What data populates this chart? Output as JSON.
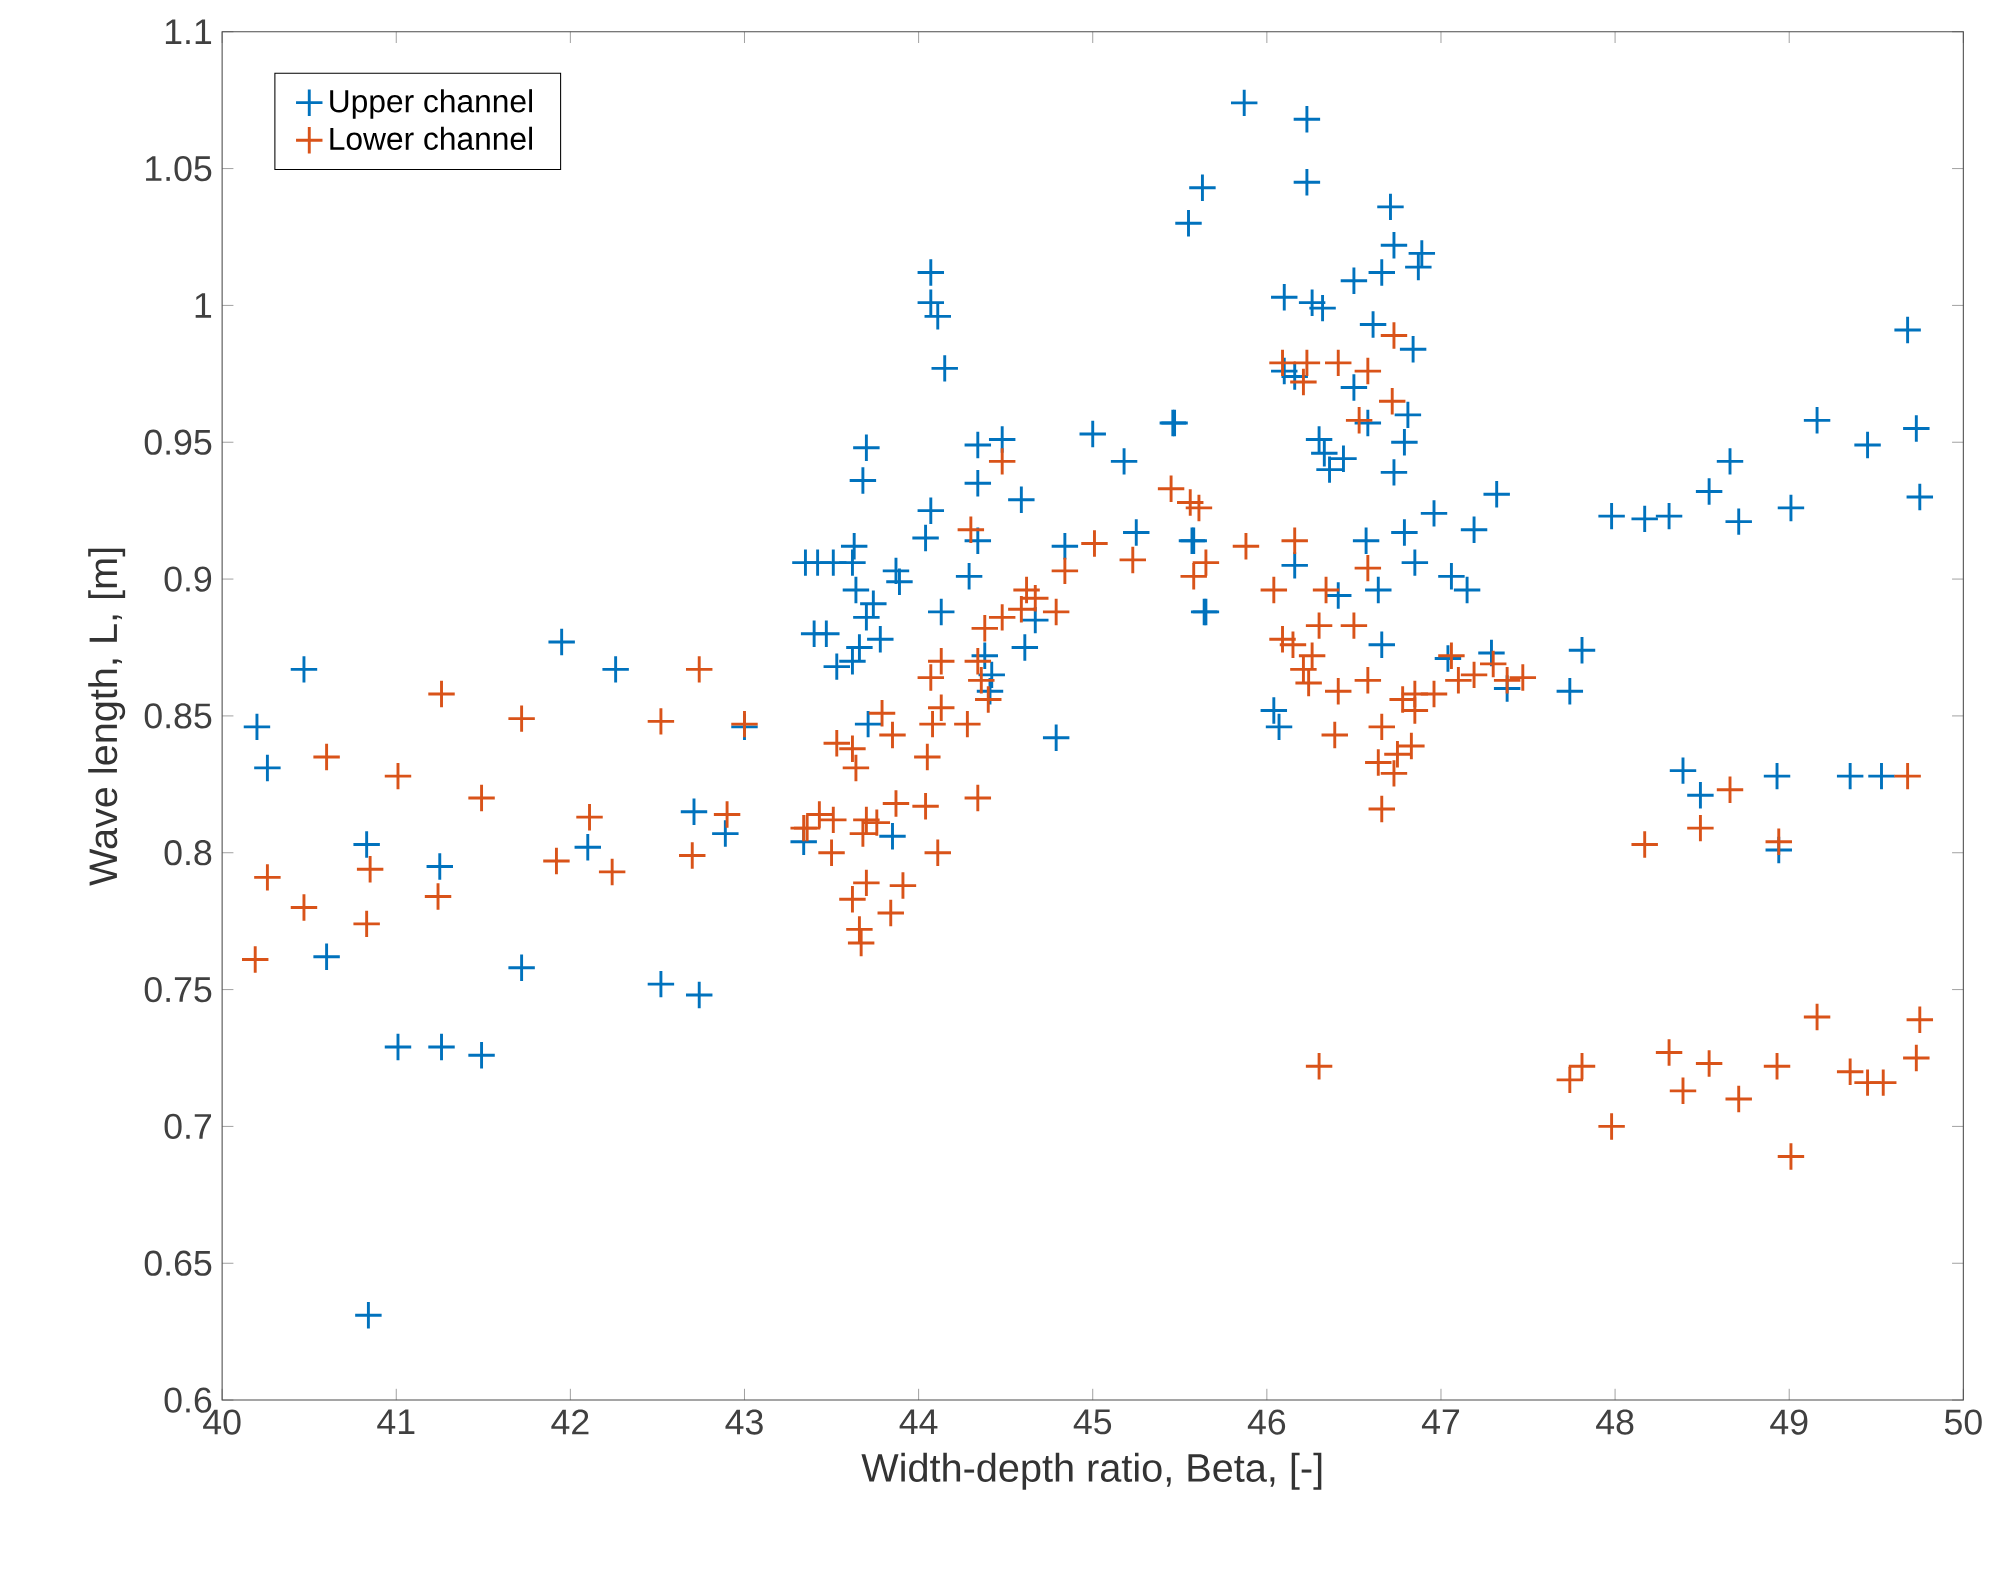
{
  "chart_data": {
    "type": "scatter",
    "xlabel": "Width-depth ratio, Beta, [-]",
    "ylabel": "Wave length, L, [m]",
    "xlim": [
      40,
      50
    ],
    "ylim": [
      0.6,
      1.1
    ],
    "xticks": [
      40,
      41,
      42,
      43,
      44,
      45,
      46,
      47,
      48,
      49,
      50
    ],
    "yticks": [
      0.6,
      0.65,
      0.7,
      0.75,
      0.8,
      0.85,
      0.9,
      0.95,
      1,
      1.05,
      1.1
    ],
    "legend": "top left",
    "marker": "cross",
    "series": [
      {
        "name": "Upper channel",
        "color": "#0072bd",
        "x": [
          40.2,
          40.26,
          40.47,
          40.6,
          40.83,
          40.84,
          41.01,
          41.26,
          41.49,
          41.25,
          41.72,
          41.95,
          42.1,
          42.26,
          42.52,
          42.74,
          42.71,
          42.89,
          43.0,
          43.35,
          43.4,
          43.34,
          44.07,
          44.07,
          44.11,
          44.15,
          43.7,
          43.68,
          44.34,
          44.48,
          44.34,
          44.59,
          45.0,
          45.18,
          45.46,
          44.07,
          44.04,
          44.34,
          44.29,
          44.84,
          45.25,
          45.57,
          45.65,
          43.42,
          43.51,
          43.63,
          43.62,
          43.87,
          43.89,
          43.64,
          43.74,
          43.7,
          43.47,
          43.78,
          43.66,
          43.53,
          43.62,
          44.13,
          44.67,
          44.61,
          44.38,
          44.42,
          44.41,
          43.71,
          44.79,
          43.85,
          45.87,
          46.23,
          45.63,
          46.23,
          45.55,
          46.71,
          46.73,
          46.89,
          46.66,
          46.87,
          46.5,
          46.1,
          46.26,
          46.32,
          46.61,
          46.84,
          46.1,
          46.16,
          46.5,
          46.81,
          46.58,
          46.79,
          46.3,
          46.33,
          46.44,
          46.36,
          46.73,
          45.47,
          47.32,
          46.96,
          47.19,
          46.79,
          46.57,
          45.58,
          46.16,
          46.85,
          47.06,
          47.15,
          46.64,
          46.41,
          45.64,
          46.66,
          47.04,
          47.29,
          47.38,
          46.04,
          46.07,
          49.68,
          49.16,
          49.45,
          49.73,
          49.75,
          48.66,
          48.54,
          47.98,
          48.17,
          48.31,
          48.71,
          49.01,
          47.81,
          47.74,
          48.39,
          48.49,
          48.93,
          49.35,
          49.53,
          48.94
        ],
        "values": [
          0.846,
          0.831,
          0.867,
          0.762,
          0.803,
          0.631,
          0.729,
          0.729,
          0.726,
          0.795,
          0.758,
          0.877,
          0.802,
          0.867,
          0.752,
          0.748,
          0.815,
          0.807,
          0.846,
          0.906,
          0.88,
          0.804,
          1.012,
          1.001,
          0.996,
          0.977,
          0.948,
          0.936,
          0.949,
          0.951,
          0.935,
          0.929,
          0.953,
          0.943,
          0.957,
          0.925,
          0.915,
          0.914,
          0.901,
          0.912,
          0.917,
          0.914,
          0.888,
          0.906,
          0.906,
          0.912,
          0.906,
          0.903,
          0.899,
          0.896,
          0.891,
          0.886,
          0.88,
          0.878,
          0.875,
          0.868,
          0.87,
          0.888,
          0.885,
          0.875,
          0.872,
          0.865,
          0.859,
          0.847,
          0.842,
          0.806,
          1.074,
          1.068,
          1.043,
          1.045,
          1.03,
          1.036,
          1.022,
          1.019,
          1.012,
          1.014,
          1.009,
          1.003,
          1.001,
          0.999,
          0.993,
          0.984,
          0.976,
          0.974,
          0.97,
          0.96,
          0.957,
          0.95,
          0.951,
          0.946,
          0.944,
          0.94,
          0.939,
          0.957,
          0.931,
          0.924,
          0.918,
          0.917,
          0.914,
          0.914,
          0.905,
          0.906,
          0.901,
          0.896,
          0.896,
          0.894,
          0.888,
          0.876,
          0.871,
          0.873,
          0.86,
          0.852,
          0.846,
          0.991,
          0.958,
          0.949,
          0.955,
          0.93,
          0.943,
          0.932,
          0.923,
          0.922,
          0.923,
          0.921,
          0.926,
          0.874,
          0.859,
          0.83,
          0.821,
          0.828,
          0.828,
          0.828,
          0.801
        ]
      },
      {
        "name": "Lower channel",
        "color": "#d95319",
        "x": [
          40.19,
          40.26,
          40.47,
          40.6,
          40.83,
          40.85,
          41.01,
          41.26,
          41.24,
          41.49,
          41.72,
          41.92,
          42.11,
          42.24,
          42.52,
          42.74,
          42.7,
          42.9,
          43.0,
          43.34,
          44.48,
          44.3,
          45.01,
          44.84,
          45.23,
          45.45,
          45.56,
          45.61,
          45.65,
          45.58,
          44.62,
          44.67,
          44.59,
          44.79,
          44.48,
          44.38,
          44.13,
          44.07,
          44.34,
          44.36,
          44.4,
          44.13,
          44.08,
          44.28,
          43.79,
          43.85,
          43.53,
          43.62,
          43.64,
          44.05,
          44.34,
          43.87,
          44.04,
          43.36,
          43.43,
          43.51,
          43.7,
          43.76,
          43.68,
          43.5,
          44.11,
          43.91,
          43.7,
          43.62,
          43.84,
          43.66,
          43.67,
          46.73,
          46.09,
          46.23,
          46.41,
          46.21,
          46.58,
          46.72,
          46.53,
          45.88,
          46.16,
          46.04,
          46.34,
          46.58,
          46.5,
          46.3,
          46.09,
          46.15,
          46.26,
          46.21,
          46.24,
          46.41,
          46.58,
          46.39,
          46.66,
          46.75,
          46.64,
          46.73,
          46.66,
          46.78,
          46.85,
          46.96,
          46.85,
          46.83,
          47.06,
          47.1,
          47.19,
          47.3,
          47.38,
          47.47,
          46.3,
          49.68,
          48.66,
          48.49,
          48.17,
          48.94,
          49.16,
          49.75,
          49.73,
          47.81,
          47.74,
          47.98,
          48.31,
          48.54,
          48.39,
          48.71,
          48.93,
          49.01,
          49.35,
          49.45,
          49.54
        ],
        "values": [
          0.761,
          0.791,
          0.78,
          0.835,
          0.774,
          0.794,
          0.828,
          0.858,
          0.784,
          0.82,
          0.849,
          0.797,
          0.813,
          0.793,
          0.848,
          0.867,
          0.799,
          0.814,
          0.847,
          0.809,
          0.943,
          0.918,
          0.913,
          0.903,
          0.907,
          0.933,
          0.928,
          0.926,
          0.906,
          0.901,
          0.896,
          0.893,
          0.889,
          0.888,
          0.886,
          0.882,
          0.87,
          0.864,
          0.87,
          0.863,
          0.856,
          0.853,
          0.847,
          0.847,
          0.851,
          0.843,
          0.84,
          0.838,
          0.831,
          0.835,
          0.82,
          0.818,
          0.817,
          0.809,
          0.814,
          0.812,
          0.812,
          0.811,
          0.807,
          0.8,
          0.8,
          0.788,
          0.789,
          0.783,
          0.778,
          0.772,
          0.767,
          0.989,
          0.979,
          0.979,
          0.979,
          0.972,
          0.976,
          0.965,
          0.958,
          0.912,
          0.914,
          0.896,
          0.896,
          0.904,
          0.883,
          0.883,
          0.878,
          0.876,
          0.872,
          0.867,
          0.862,
          0.859,
          0.863,
          0.843,
          0.846,
          0.836,
          0.833,
          0.829,
          0.816,
          0.856,
          0.858,
          0.858,
          0.852,
          0.839,
          0.872,
          0.863,
          0.865,
          0.869,
          0.863,
          0.864,
          0.722,
          0.828,
          0.823,
          0.809,
          0.803,
          0.804,
          0.74,
          0.739,
          0.725,
          0.722,
          0.717,
          0.7,
          0.727,
          0.723,
          0.713,
          0.71,
          0.722,
          0.689,
          0.72,
          0.716,
          0.716
        ]
      }
    ]
  }
}
